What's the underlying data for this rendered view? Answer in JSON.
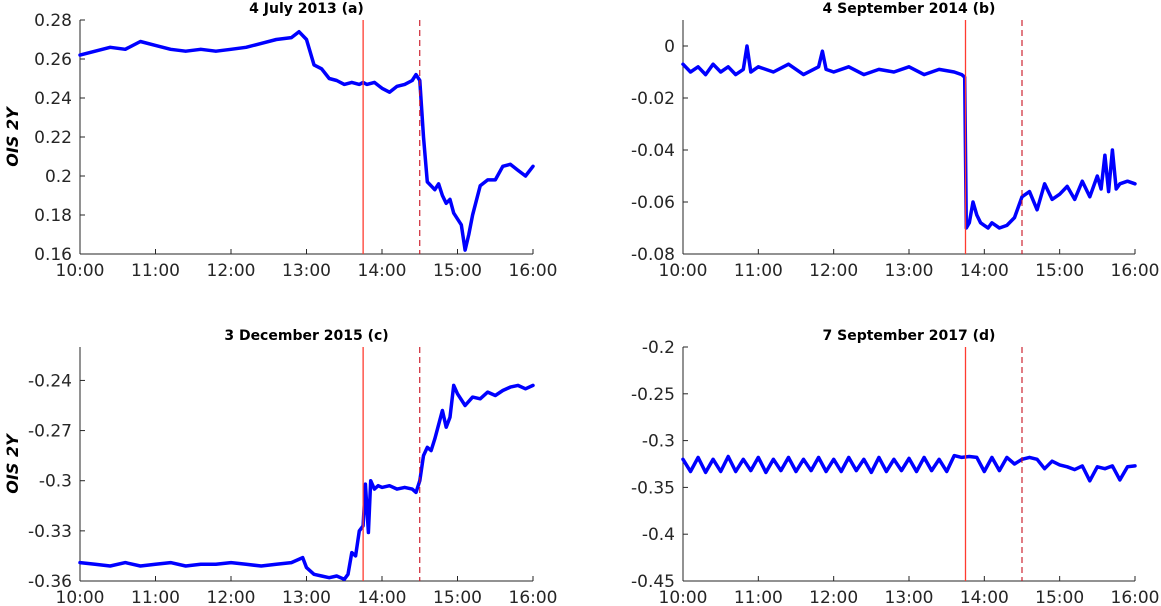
{
  "figure": {
    "colors": {
      "series": "#0000ff",
      "announcement_line": "#ff3b30",
      "press_conference_line": "#c8101e",
      "axis": "#262626"
    }
  },
  "chart_data": [
    {
      "type": "line",
      "title": "4 July 2013 (a)",
      "ylabel": "OIS 2Y",
      "xlabel": "",
      "x_ticks": [
        "10:00",
        "11:00",
        "12:00",
        "13:00",
        "14:00",
        "15:00",
        "16:00"
      ],
      "xlim_hours": [
        10,
        16
      ],
      "ylim": [
        0.16,
        0.28
      ],
      "y_ticks": [
        0.16,
        0.18,
        0.2,
        0.22,
        0.24,
        0.26,
        0.28
      ],
      "y_tick_labels": [
        "0.16",
        "0.18",
        "0.2",
        "0.22",
        "0.24",
        "0.26",
        "0.28"
      ],
      "vlines": {
        "solid_hour": 13.75,
        "dashed_hour": 14.5
      },
      "series": [
        {
          "x_hours": [
            10.0,
            10.2,
            10.4,
            10.6,
            10.8,
            11.0,
            11.2,
            11.4,
            11.6,
            11.8,
            12.0,
            12.2,
            12.4,
            12.6,
            12.8,
            12.9,
            13.0,
            13.1,
            13.2,
            13.3,
            13.4,
            13.5,
            13.6,
            13.7,
            13.75,
            13.8,
            13.9,
            14.0,
            14.1,
            14.2,
            14.3,
            14.4,
            14.45,
            14.5,
            14.55,
            14.6,
            14.65,
            14.7,
            14.75,
            14.8,
            14.85,
            14.9,
            14.95,
            15.0,
            15.05,
            15.1,
            15.15,
            15.2,
            15.3,
            15.4,
            15.5,
            15.6,
            15.7,
            15.8,
            15.9,
            16.0
          ],
          "y": [
            0.262,
            0.264,
            0.266,
            0.265,
            0.269,
            0.267,
            0.265,
            0.264,
            0.265,
            0.264,
            0.265,
            0.266,
            0.268,
            0.27,
            0.271,
            0.274,
            0.27,
            0.257,
            0.255,
            0.25,
            0.249,
            0.247,
            0.248,
            0.247,
            0.248,
            0.247,
            0.248,
            0.245,
            0.243,
            0.246,
            0.247,
            0.249,
            0.252,
            0.249,
            0.22,
            0.197,
            0.195,
            0.193,
            0.196,
            0.19,
            0.186,
            0.188,
            0.181,
            0.178,
            0.175,
            0.162,
            0.17,
            0.18,
            0.195,
            0.198,
            0.198,
            0.205,
            0.206,
            0.203,
            0.2,
            0.205
          ]
        }
      ]
    },
    {
      "type": "line",
      "title": "4 September 2014 (b)",
      "ylabel": "",
      "xlabel": "",
      "x_ticks": [
        "10:00",
        "11:00",
        "12:00",
        "13:00",
        "14:00",
        "15:00",
        "16:00"
      ],
      "xlim_hours": [
        10,
        16
      ],
      "ylim": [
        -0.08,
        0.01
      ],
      "y_ticks": [
        -0.08,
        -0.06,
        -0.04,
        -0.02,
        0
      ],
      "y_tick_labels": [
        "-0.08",
        "-0.06",
        "-0.04",
        "-0.02",
        "0"
      ],
      "vlines": {
        "solid_hour": 13.75,
        "dashed_hour": 14.5
      },
      "series": [
        {
          "x_hours": [
            10.0,
            10.1,
            10.2,
            10.3,
            10.4,
            10.5,
            10.6,
            10.7,
            10.8,
            10.85,
            10.9,
            11.0,
            11.2,
            11.4,
            11.6,
            11.8,
            11.85,
            11.9,
            12.0,
            12.2,
            12.4,
            12.6,
            12.8,
            13.0,
            13.2,
            13.4,
            13.6,
            13.7,
            13.74,
            13.76,
            13.8,
            13.85,
            13.9,
            13.95,
            14.0,
            14.05,
            14.1,
            14.2,
            14.3,
            14.4,
            14.5,
            14.6,
            14.7,
            14.8,
            14.9,
            15.0,
            15.1,
            15.2,
            15.3,
            15.4,
            15.5,
            15.55,
            15.6,
            15.65,
            15.7,
            15.75,
            15.8,
            15.9,
            16.0
          ],
          "y": [
            -0.007,
            -0.01,
            -0.008,
            -0.011,
            -0.007,
            -0.01,
            -0.008,
            -0.011,
            -0.009,
            0.0,
            -0.01,
            -0.008,
            -0.01,
            -0.007,
            -0.011,
            -0.008,
            -0.002,
            -0.009,
            -0.01,
            -0.008,
            -0.011,
            -0.009,
            -0.01,
            -0.008,
            -0.011,
            -0.009,
            -0.01,
            -0.011,
            -0.012,
            -0.07,
            -0.068,
            -0.06,
            -0.065,
            -0.068,
            -0.069,
            -0.07,
            -0.068,
            -0.07,
            -0.069,
            -0.066,
            -0.058,
            -0.056,
            -0.063,
            -0.053,
            -0.059,
            -0.057,
            -0.054,
            -0.059,
            -0.052,
            -0.058,
            -0.05,
            -0.055,
            -0.042,
            -0.056,
            -0.04,
            -0.055,
            -0.053,
            -0.052,
            -0.053
          ]
        }
      ]
    },
    {
      "type": "line",
      "title": "3 December 2015 (c)",
      "ylabel": "OIS 2Y",
      "xlabel": "",
      "x_ticks": [
        "10:00",
        "11:00",
        "12:00",
        "13:00",
        "14:00",
        "15:00",
        "16:00"
      ],
      "xlim_hours": [
        10,
        16
      ],
      "ylim": [
        -0.36,
        -0.22
      ],
      "y_ticks": [
        -0.36,
        -0.33,
        -0.3,
        -0.27,
        -0.24
      ],
      "y_tick_labels": [
        "-0.36",
        "-0.33",
        "-0.3",
        "-0.27",
        "-0.24"
      ],
      "vlines": {
        "solid_hour": 13.75,
        "dashed_hour": 14.5
      },
      "series": [
        {
          "x_hours": [
            10.0,
            10.2,
            10.4,
            10.6,
            10.8,
            11.0,
            11.2,
            11.4,
            11.6,
            11.8,
            12.0,
            12.2,
            12.4,
            12.6,
            12.8,
            12.95,
            13.0,
            13.1,
            13.2,
            13.3,
            13.4,
            13.5,
            13.55,
            13.6,
            13.65,
            13.7,
            13.75,
            13.78,
            13.82,
            13.85,
            13.9,
            13.95,
            14.0,
            14.1,
            14.2,
            14.3,
            14.4,
            14.45,
            14.5,
            14.55,
            14.6,
            14.65,
            14.7,
            14.8,
            14.85,
            14.9,
            14.95,
            15.0,
            15.1,
            15.2,
            15.3,
            15.4,
            15.5,
            15.6,
            15.7,
            15.8,
            15.9,
            16.0
          ],
          "y": [
            -0.349,
            -0.35,
            -0.351,
            -0.349,
            -0.351,
            -0.35,
            -0.349,
            -0.351,
            -0.35,
            -0.35,
            -0.349,
            -0.35,
            -0.351,
            -0.35,
            -0.349,
            -0.346,
            -0.352,
            -0.356,
            -0.357,
            -0.358,
            -0.357,
            -0.359,
            -0.356,
            -0.343,
            -0.345,
            -0.33,
            -0.327,
            -0.302,
            -0.331,
            -0.3,
            -0.305,
            -0.303,
            -0.304,
            -0.303,
            -0.305,
            -0.304,
            -0.305,
            -0.307,
            -0.3,
            -0.285,
            -0.28,
            -0.282,
            -0.275,
            -0.258,
            -0.268,
            -0.262,
            -0.243,
            -0.248,
            -0.255,
            -0.25,
            -0.251,
            -0.247,
            -0.249,
            -0.246,
            -0.244,
            -0.243,
            -0.245,
            -0.243
          ]
        }
      ]
    },
    {
      "type": "line",
      "title": "7 September 2017 (d)",
      "ylabel": "",
      "xlabel": "",
      "x_ticks": [
        "10:00",
        "11:00",
        "12:00",
        "13:00",
        "14:00",
        "15:00",
        "16:00"
      ],
      "xlim_hours": [
        10,
        16
      ],
      "ylim": [
        -0.45,
        -0.2
      ],
      "y_ticks": [
        -0.45,
        -0.4,
        -0.35,
        -0.3,
        -0.25,
        -0.2
      ],
      "y_tick_labels": [
        "-0.45",
        "-0.4",
        "-0.35",
        "-0.3",
        "-0.25",
        "-0.2"
      ],
      "vlines": {
        "solid_hour": 13.75,
        "dashed_hour": 14.5
      },
      "series": [
        {
          "x_hours": [
            10.0,
            10.1,
            10.2,
            10.3,
            10.4,
            10.5,
            10.6,
            10.7,
            10.8,
            10.9,
            11.0,
            11.1,
            11.2,
            11.3,
            11.4,
            11.5,
            11.6,
            11.7,
            11.8,
            11.9,
            12.0,
            12.1,
            12.2,
            12.3,
            12.4,
            12.5,
            12.6,
            12.7,
            12.8,
            12.9,
            13.0,
            13.1,
            13.2,
            13.3,
            13.4,
            13.5,
            13.6,
            13.7,
            13.8,
            13.9,
            14.0,
            14.1,
            14.2,
            14.3,
            14.4,
            14.5,
            14.6,
            14.7,
            14.8,
            14.9,
            15.0,
            15.1,
            15.2,
            15.3,
            15.4,
            15.5,
            15.6,
            15.7,
            15.8,
            15.9,
            16.0
          ],
          "y": [
            -0.32,
            -0.333,
            -0.318,
            -0.334,
            -0.32,
            -0.333,
            -0.317,
            -0.333,
            -0.32,
            -0.332,
            -0.318,
            -0.334,
            -0.32,
            -0.332,
            -0.318,
            -0.333,
            -0.32,
            -0.332,
            -0.318,
            -0.333,
            -0.32,
            -0.333,
            -0.318,
            -0.332,
            -0.32,
            -0.334,
            -0.318,
            -0.333,
            -0.32,
            -0.332,
            -0.319,
            -0.333,
            -0.318,
            -0.332,
            -0.32,
            -0.333,
            -0.316,
            -0.318,
            -0.317,
            -0.318,
            -0.333,
            -0.318,
            -0.332,
            -0.318,
            -0.325,
            -0.32,
            -0.318,
            -0.32,
            -0.33,
            -0.322,
            -0.326,
            -0.328,
            -0.331,
            -0.327,
            -0.343,
            -0.328,
            -0.33,
            -0.327,
            -0.342,
            -0.328,
            -0.327
          ]
        }
      ]
    }
  ]
}
